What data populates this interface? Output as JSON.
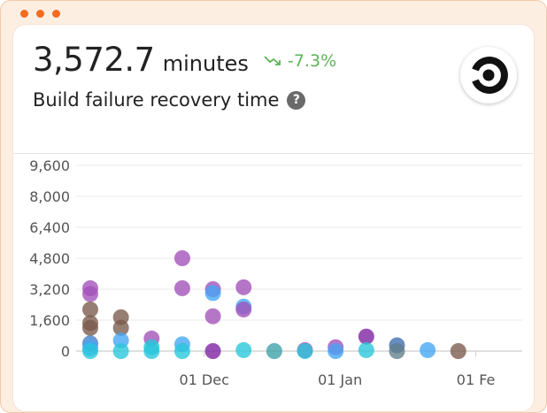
{
  "window": {
    "dots": 3
  },
  "header": {
    "metric_value": "3,572.7",
    "metric_unit": "minutes",
    "trend": "-7.3%",
    "trend_color": "#5fb35a",
    "title": "Build failure recovery time",
    "help_icon": "question-circle-icon",
    "logo": "circleci-logo"
  },
  "chart_data": {
    "type": "scatter",
    "title": "",
    "xlabel": "",
    "ylabel": "",
    "ylim": [
      0,
      9600
    ],
    "y_ticks": [
      "9,600",
      "8,000",
      "6,400",
      "4,800",
      "3,200",
      "1,600",
      "0"
    ],
    "y_tick_values": [
      9600,
      8000,
      6400,
      4800,
      3200,
      1600,
      0
    ],
    "x_ticks": [
      "01 Dec",
      "01 Jan",
      "01 Fe"
    ],
    "x_tick_dates": [
      "2019-12-01",
      "2020-01-01",
      "2020-02-01"
    ],
    "x_range": [
      "2019-11-05",
      "2020-02-08"
    ],
    "grid": true,
    "points": [
      {
        "date": "2019-11-05",
        "value": 3250,
        "color": "#a24fb8"
      },
      {
        "date": "2019-11-05",
        "value": 2950,
        "color": "#a24fb8"
      },
      {
        "date": "2019-11-05",
        "value": 2150,
        "color": "#7a5a4b"
      },
      {
        "date": "2019-11-05",
        "value": 1450,
        "color": "#7a5a4b"
      },
      {
        "date": "2019-11-05",
        "value": 1200,
        "color": "#7a5a4b"
      },
      {
        "date": "2019-11-05",
        "value": 400,
        "color": "#3d7dd0"
      },
      {
        "date": "2019-11-05",
        "value": 150,
        "color": "#42a5f5"
      },
      {
        "date": "2019-11-05",
        "value": 0,
        "color": "#26c6da"
      },
      {
        "date": "2019-11-12",
        "value": 1750,
        "color": "#7a5a4b"
      },
      {
        "date": "2019-11-12",
        "value": 1200,
        "color": "#7a5a4b"
      },
      {
        "date": "2019-11-12",
        "value": 550,
        "color": "#42a5f5"
      },
      {
        "date": "2019-11-12",
        "value": 0,
        "color": "#26c6da"
      },
      {
        "date": "2019-11-19",
        "value": 650,
        "color": "#a24fb8"
      },
      {
        "date": "2019-11-19",
        "value": 200,
        "color": "#26c6da"
      },
      {
        "date": "2019-11-19",
        "value": 0,
        "color": "#26c6da"
      },
      {
        "date": "2019-11-26",
        "value": 4800,
        "color": "#a24fb8"
      },
      {
        "date": "2019-11-26",
        "value": 3250,
        "color": "#a24fb8"
      },
      {
        "date": "2019-11-26",
        "value": 350,
        "color": "#42a5f5"
      },
      {
        "date": "2019-11-26",
        "value": 0,
        "color": "#26c6da"
      },
      {
        "date": "2019-12-03",
        "value": 3200,
        "color": "#a24fb8"
      },
      {
        "date": "2019-12-03",
        "value": 3000,
        "color": "#42a5f5"
      },
      {
        "date": "2019-12-03",
        "value": 1800,
        "color": "#a24fb8"
      },
      {
        "date": "2019-12-03",
        "value": 0,
        "color": "#7b1fa2"
      },
      {
        "date": "2019-12-10",
        "value": 3300,
        "color": "#a24fb8"
      },
      {
        "date": "2019-12-10",
        "value": 2300,
        "color": "#42a5f5"
      },
      {
        "date": "2019-12-10",
        "value": 2150,
        "color": "#a24fb8"
      },
      {
        "date": "2019-12-10",
        "value": 50,
        "color": "#26c6da"
      },
      {
        "date": "2019-12-17",
        "value": 0,
        "color": "#3aa0a8"
      },
      {
        "date": "2019-12-24",
        "value": 50,
        "color": "#a24fb8"
      },
      {
        "date": "2019-12-24",
        "value": 0,
        "color": "#26c6da"
      },
      {
        "date": "2019-12-31",
        "value": 200,
        "color": "#a24fb8"
      },
      {
        "date": "2019-12-31",
        "value": 0,
        "color": "#42a5f5"
      },
      {
        "date": "2020-01-07",
        "value": 750,
        "color": "#7b1fa2"
      },
      {
        "date": "2020-01-07",
        "value": 50,
        "color": "#26c6da"
      },
      {
        "date": "2020-01-14",
        "value": 300,
        "color": "#3d6bb0"
      },
      {
        "date": "2020-01-14",
        "value": 0,
        "color": "#607d8b"
      },
      {
        "date": "2020-01-21",
        "value": 50,
        "color": "#42a5f5"
      },
      {
        "date": "2020-01-28",
        "value": 0,
        "color": "#7a5a4b"
      }
    ]
  }
}
